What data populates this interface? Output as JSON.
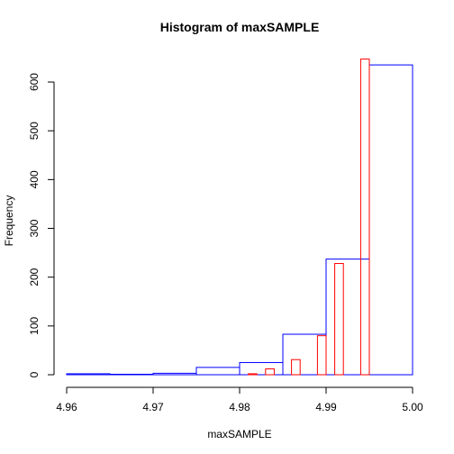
{
  "chart_data": {
    "type": "bar",
    "title": "Histogram of maxSAMPLE",
    "xlabel": "maxSAMPLE",
    "ylabel": "Frequency",
    "xlim": [
      4.96,
      5.0
    ],
    "ylim": [
      0,
      650
    ],
    "x_ticks": [
      "4.96",
      "4.97",
      "4.98",
      "4.99",
      "5.00"
    ],
    "y_ticks": [
      "0",
      "100",
      "200",
      "300",
      "400",
      "500",
      "600"
    ],
    "grid": false,
    "legend": "none",
    "series": [
      {
        "color": "#0000ff",
        "bin_width": 0.005,
        "bin_starts": [
          4.96,
          4.965,
          4.97,
          4.975,
          4.98,
          4.985,
          4.99,
          4.995
        ],
        "values": [
          2,
          1,
          3,
          15,
          25,
          83,
          237,
          635
        ]
      },
      {
        "color": "#ff0000",
        "bin_width": 0.001,
        "bin_starts": [
          4.98,
          4.981,
          4.982,
          4.983,
          4.984,
          4.985,
          4.986,
          4.987,
          4.988,
          4.989,
          4.99,
          4.991,
          4.992,
          4.993,
          4.994,
          4.995
        ],
        "values": [
          0,
          2,
          0,
          12,
          0,
          0,
          31,
          0,
          0,
          80,
          0,
          228,
          0,
          0,
          647,
          0
        ]
      }
    ]
  }
}
